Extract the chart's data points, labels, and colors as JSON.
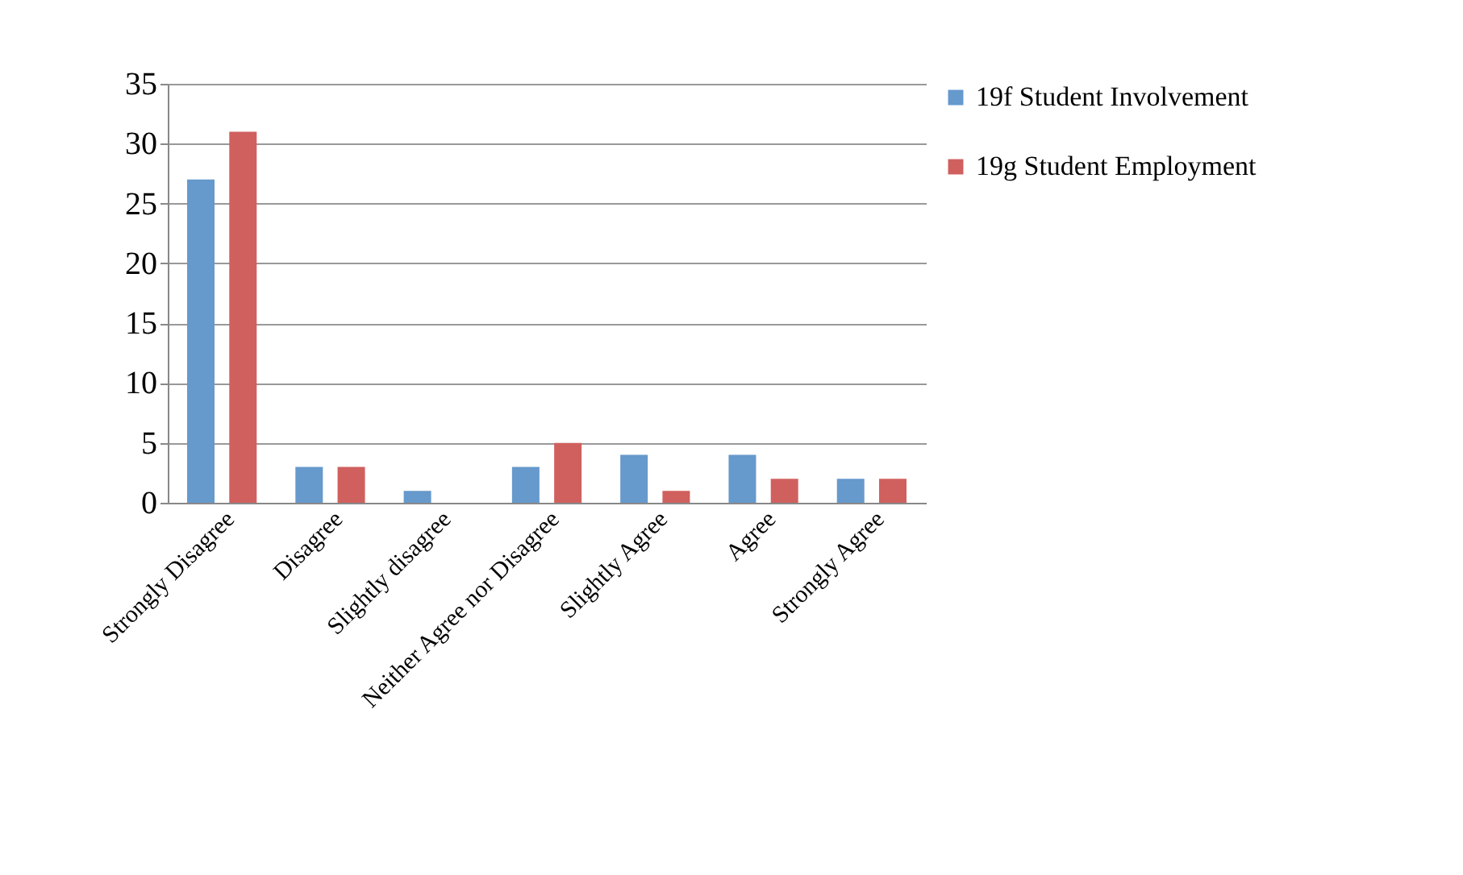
{
  "chart_data": {
    "type": "bar",
    "categories": [
      "Strongly Disagree",
      "Disagree",
      "Slightly disagree",
      "Neither Agree nor Disagree",
      "Slightly Agree",
      "Agree",
      "Strongly Agree"
    ],
    "series": [
      {
        "name": "19f  Student Involvement",
        "color": "#6699cc",
        "values": [
          27,
          3,
          1,
          3,
          4,
          4,
          2
        ]
      },
      {
        "name": "19g  Student Employment",
        "color": "#d0605e",
        "values": [
          31,
          3,
          0,
          5,
          1,
          2,
          2
        ]
      }
    ],
    "ylim": [
      0,
      35
    ],
    "yticks": [
      0,
      5,
      10,
      15,
      20,
      25,
      30,
      35
    ],
    "grid": "y",
    "legend": "right"
  }
}
